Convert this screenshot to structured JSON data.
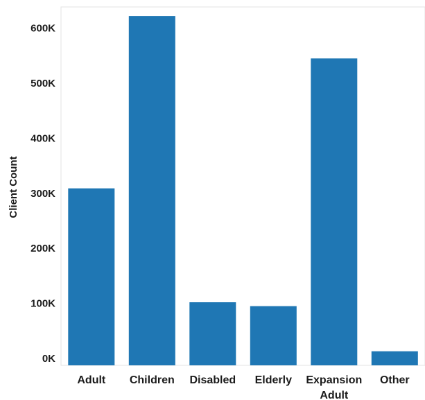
{
  "chart_data": {
    "type": "bar",
    "categories": [
      [
        "Adult"
      ],
      [
        "Children"
      ],
      [
        "Disabled"
      ],
      [
        "Elderly"
      ],
      [
        "Expansion",
        "Adult"
      ],
      [
        "Other"
      ]
    ],
    "values": [
      309000,
      622000,
      102000,
      95000,
      545000,
      13000
    ],
    "ylabel": "Client Count",
    "ylim": [
      0,
      660000
    ],
    "yticks": [
      0,
      100000,
      200000,
      300000,
      400000,
      500000,
      600000
    ],
    "ytick_labels": [
      "0K",
      "100K",
      "200K",
      "300K",
      "400K",
      "500K",
      "600K"
    ],
    "bar_color": "#1f77b4",
    "grid": false
  }
}
